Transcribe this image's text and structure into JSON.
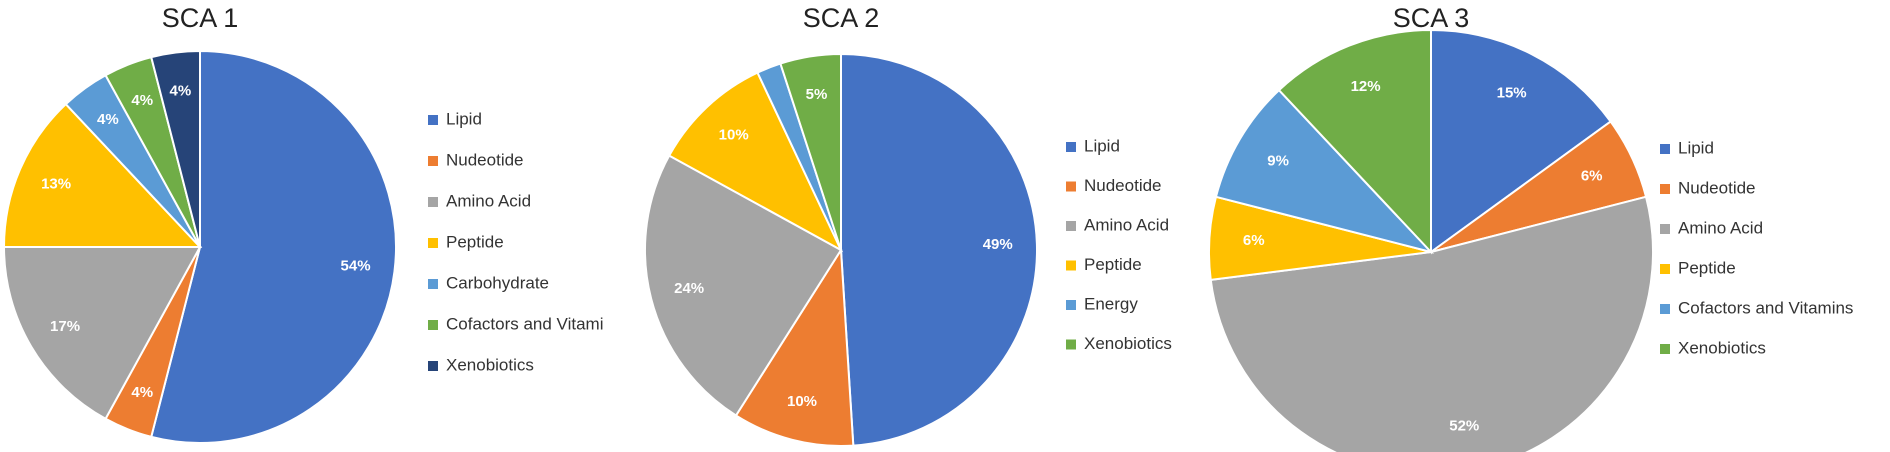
{
  "chart_data": [
    {
      "type": "pie",
      "title": "SCA 1",
      "categories": [
        "Lipid",
        "Nudeotide",
        "Amino Acid",
        "Peptide",
        "Carbohydrate",
        "Cofactors and Vitami",
        "Xenobiotics"
      ],
      "values": [
        54,
        4,
        17,
        13,
        4,
        4,
        4
      ],
      "value_labels": [
        "54%",
        "4%",
        "17%",
        "13%",
        "4%",
        "4%",
        "4%"
      ],
      "colors": [
        "#4472c4",
        "#ed7d31",
        "#a5a5a5",
        "#ffc000",
        "#5b9bd5",
        "#70ad47",
        "#264478"
      ]
    },
    {
      "type": "pie",
      "title": "SCA 2",
      "categories": [
        "Lipid",
        "Nudeotide",
        "Amino Acid",
        "Peptide",
        "Energy",
        "Xenobiotics"
      ],
      "values": [
        49,
        10,
        24,
        10,
        2,
        5
      ],
      "value_labels": [
        "49%",
        "10%",
        "24%",
        "10%",
        null,
        "5%"
      ],
      "colors": [
        "#4472c4",
        "#ed7d31",
        "#a5a5a5",
        "#ffc000",
        "#5b9bd5",
        "#70ad47"
      ]
    },
    {
      "type": "pie",
      "title": "SCA 3",
      "categories": [
        "Lipid",
        "Nudeotide",
        "Amino Acid",
        "Peptide",
        "Cofactors and Vitamins",
        "Xenobiotics"
      ],
      "values": [
        15,
        6,
        52,
        6,
        9,
        12
      ],
      "value_labels": [
        "15%",
        "6%",
        "52%",
        "6%",
        "9%",
        "12%"
      ],
      "colors": [
        "#4472c4",
        "#ed7d31",
        "#a5a5a5",
        "#ffc000",
        "#5b9bd5",
        "#70ad47"
      ]
    }
  ]
}
